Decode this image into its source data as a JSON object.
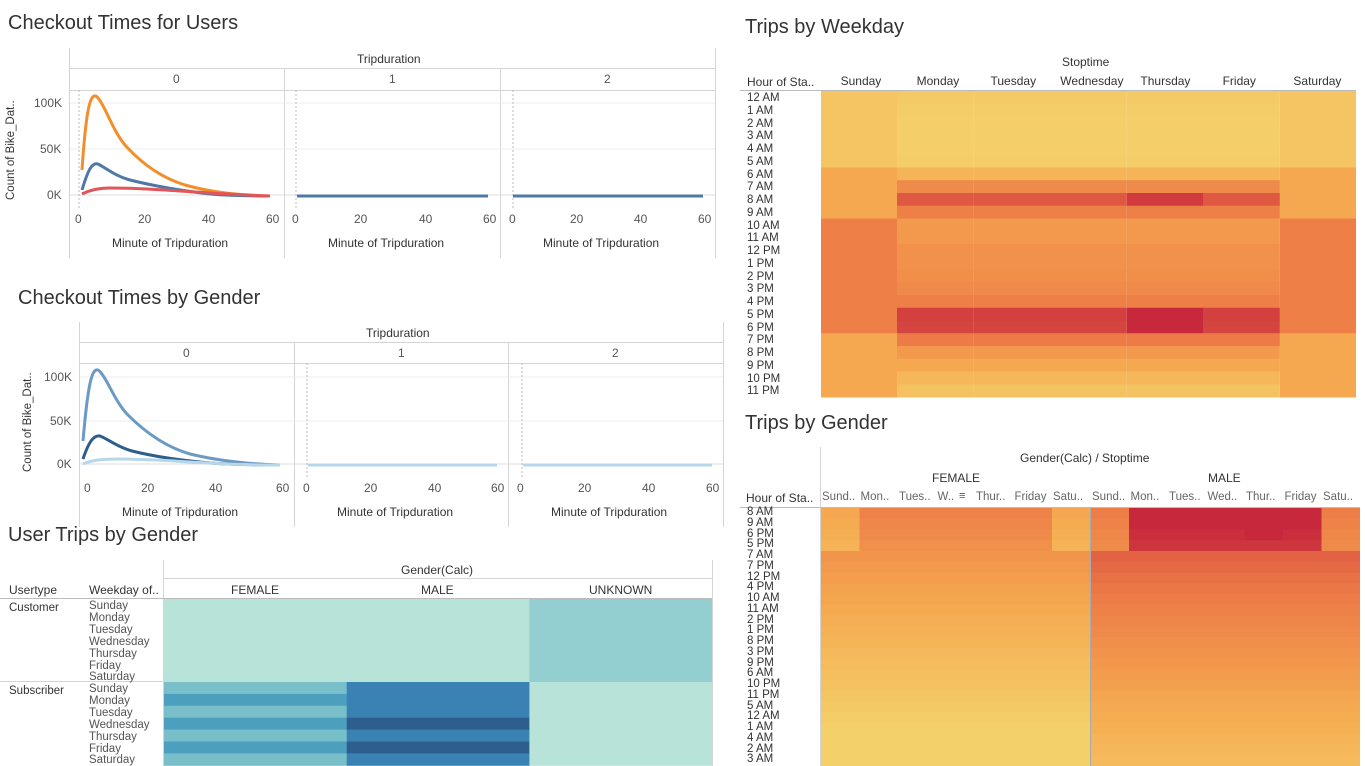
{
  "colors": {
    "orange": "#f28e2b",
    "blue": "#4e79a7",
    "red": "#e15759",
    "teal_light": "#b8e3d8",
    "teal_dark": "#2e5e8c"
  },
  "tripduration_labels": [
    "0",
    "1",
    "2"
  ],
  "x_ticks": [
    "0",
    "20",
    "40",
    "60"
  ],
  "checkout_users": {
    "title": "Checkout Times for Users",
    "header": "Tripduration",
    "ylabel": "Count of Bike_Dat..",
    "xlabel": "Minute of Tripduration",
    "y_ticks": [
      "100K",
      "50K",
      "0K"
    ]
  },
  "checkout_gender": {
    "title": "Checkout Times by Gender",
    "header": "Tripduration",
    "ylabel": "Count of Bike_Dat..",
    "xlabel": "Minute of Tripduration",
    "y_ticks": [
      "100K",
      "50K",
      "0K"
    ]
  },
  "user_trips": {
    "title": "User Trips by Gender",
    "header": "Gender(Calc)",
    "col1": "Usertype",
    "col2": "Weekday of..",
    "genders": [
      "FEMALE",
      "MALE",
      "UNKNOWN"
    ],
    "usertypes": [
      "Customer",
      "Subscriber"
    ],
    "weekdays": [
      "Sunday",
      "Monday",
      "Tuesday",
      "Wednesday",
      "Thursday",
      "Friday",
      "Saturday"
    ]
  },
  "weekday": {
    "title": "Trips by Weekday",
    "header": "Stoptime",
    "corner": "Hour of Sta..",
    "days": [
      "Sunday",
      "Monday",
      "Tuesday",
      "Wednesday",
      "Thursday",
      "Friday",
      "Saturday"
    ],
    "hours": [
      "12 AM",
      "1 AM",
      "2 AM",
      "3 AM",
      "4 AM",
      "5 AM",
      "6 AM",
      "7 AM",
      "8 AM",
      "9 AM",
      "10 AM",
      "11 AM",
      "12 PM",
      "1 PM",
      "2 PM",
      "3 PM",
      "4 PM",
      "5 PM",
      "6 PM",
      "7 PM",
      "8 PM",
      "9 PM",
      "10 PM",
      "11 PM"
    ]
  },
  "gender_trips": {
    "title": "Trips by Gender",
    "header": "Gender(Calc) / Stoptime",
    "corner": "Hour of Sta..",
    "groups": [
      "FEMALE",
      "MALE"
    ],
    "female_days": [
      "Sund..",
      "Mon..",
      "Tues..",
      "W..",
      "Thur..",
      "Friday",
      "Satu.."
    ],
    "male_days": [
      "Sund..",
      "Mon..",
      "Tues..",
      "Wed..",
      "Thur..",
      "Friday",
      "Satu.."
    ],
    "hours": [
      "8 AM",
      "9 AM",
      "6 PM",
      "5 PM",
      "7 AM",
      "7 PM",
      "12 PM",
      "4 PM",
      "10 AM",
      "11 AM",
      "2 PM",
      "1 PM",
      "8 PM",
      "3 PM",
      "9 PM",
      "6 AM",
      "10 PM",
      "11 PM",
      "5 AM",
      "12 AM",
      "1 AM",
      "4 AM",
      "2 AM",
      "3 AM"
    ]
  }
}
